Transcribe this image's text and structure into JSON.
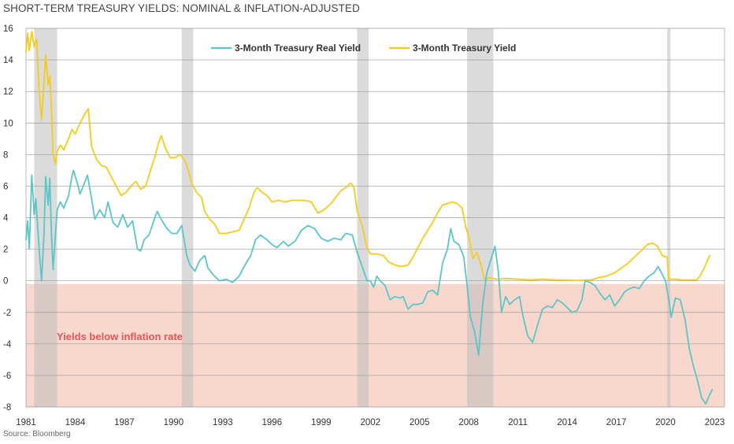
{
  "chart_data": {
    "type": "line",
    "title": "SHORT-TERM TREASURY YIELDS: NOMINAL & INFLATION-ADJUSTED",
    "source": "Source: Bloomberg",
    "xlabel": "",
    "ylabel": "",
    "xlim": [
      1981,
      2023.6
    ],
    "ylim": [
      -8,
      16
    ],
    "x_ticks": [
      1981,
      1984,
      1987,
      1990,
      1993,
      1996,
      1999,
      2002,
      2005,
      2008,
      2011,
      2014,
      2017,
      2020,
      2023
    ],
    "y_ticks": [
      -8,
      -6,
      -4,
      -2,
      0,
      2,
      4,
      6,
      8,
      10,
      12,
      14,
      16
    ],
    "grid": "horizontal",
    "legend_position": "top",
    "annotation": "Yields below inflation rate",
    "negative_region_color": "#f8d8cc",
    "annotation_color": "#e8545a",
    "recessions": [
      [
        1981.5,
        1982.9
      ],
      [
        1990.5,
        1991.2
      ],
      [
        2001.2,
        2001.9
      ],
      [
        2007.9,
        2009.5
      ],
      [
        2020.1,
        2020.3
      ]
    ],
    "series": [
      {
        "name": "3-Month Treasury Real Yield",
        "color": "#5bc5c8",
        "points": [
          [
            1981.0,
            2.6
          ],
          [
            1981.1,
            3.8
          ],
          [
            1981.2,
            2.0
          ],
          [
            1981.35,
            6.7
          ],
          [
            1981.5,
            4.2
          ],
          [
            1981.6,
            5.2
          ],
          [
            1981.8,
            2.0
          ],
          [
            1981.95,
            0.0
          ],
          [
            1982.1,
            3.0
          ],
          [
            1982.2,
            6.6
          ],
          [
            1982.35,
            4.8
          ],
          [
            1982.45,
            6.5
          ],
          [
            1982.55,
            3.0
          ],
          [
            1982.65,
            0.7
          ],
          [
            1982.8,
            3.0
          ],
          [
            1982.9,
            4.5
          ],
          [
            1983.1,
            5.0
          ],
          [
            1983.3,
            4.6
          ],
          [
            1983.6,
            5.4
          ],
          [
            1983.8,
            6.6
          ],
          [
            1983.9,
            7.0
          ],
          [
            1984.1,
            6.3
          ],
          [
            1984.3,
            5.5
          ],
          [
            1984.6,
            6.3
          ],
          [
            1984.75,
            6.7
          ],
          [
            1985.0,
            5.2
          ],
          [
            1985.2,
            3.9
          ],
          [
            1985.5,
            4.5
          ],
          [
            1985.8,
            4.0
          ],
          [
            1986.0,
            5.0
          ],
          [
            1986.3,
            3.7
          ],
          [
            1986.6,
            3.4
          ],
          [
            1986.9,
            4.2
          ],
          [
            1987.2,
            3.4
          ],
          [
            1987.5,
            3.8
          ],
          [
            1987.8,
            2.0
          ],
          [
            1988.0,
            1.9
          ],
          [
            1988.2,
            2.6
          ],
          [
            1988.5,
            2.9
          ],
          [
            1988.8,
            3.8
          ],
          [
            1989.0,
            4.4
          ],
          [
            1989.3,
            3.8
          ],
          [
            1989.6,
            3.3
          ],
          [
            1989.9,
            3.0
          ],
          [
            1990.2,
            3.0
          ],
          [
            1990.5,
            3.5
          ],
          [
            1990.8,
            1.6
          ],
          [
            1991.0,
            1.0
          ],
          [
            1991.3,
            0.6
          ],
          [
            1991.6,
            1.3
          ],
          [
            1991.9,
            1.6
          ],
          [
            1992.1,
            0.8
          ],
          [
            1992.4,
            0.4
          ],
          [
            1992.8,
            0.0
          ],
          [
            1993.2,
            0.1
          ],
          [
            1993.6,
            -0.1
          ],
          [
            1994.0,
            0.3
          ],
          [
            1994.3,
            0.9
          ],
          [
            1994.7,
            1.6
          ],
          [
            1995.0,
            2.6
          ],
          [
            1995.3,
            2.9
          ],
          [
            1995.7,
            2.6
          ],
          [
            1996.0,
            2.3
          ],
          [
            1996.3,
            2.1
          ],
          [
            1996.7,
            2.5
          ],
          [
            1997.0,
            2.2
          ],
          [
            1997.4,
            2.5
          ],
          [
            1997.8,
            3.2
          ],
          [
            1998.2,
            3.5
          ],
          [
            1998.6,
            3.3
          ],
          [
            1999.0,
            2.7
          ],
          [
            1999.4,
            2.5
          ],
          [
            1999.8,
            2.7
          ],
          [
            2000.2,
            2.6
          ],
          [
            2000.5,
            3.0
          ],
          [
            2000.9,
            2.9
          ],
          [
            2001.2,
            1.8
          ],
          [
            2001.5,
            0.9
          ],
          [
            2001.8,
            0.0
          ],
          [
            2002.0,
            0.0
          ],
          [
            2002.2,
            -0.4
          ],
          [
            2002.4,
            0.3
          ],
          [
            2002.6,
            0.0
          ],
          [
            2002.9,
            -0.3
          ],
          [
            2003.2,
            -1.2
          ],
          [
            2003.5,
            -1.0
          ],
          [
            2003.8,
            -1.1
          ],
          [
            2004.0,
            -1.0
          ],
          [
            2004.3,
            -1.8
          ],
          [
            2004.6,
            -1.5
          ],
          [
            2004.9,
            -1.5
          ],
          [
            2005.2,
            -1.4
          ],
          [
            2005.5,
            -0.7
          ],
          [
            2005.8,
            -0.6
          ],
          [
            2006.1,
            -0.9
          ],
          [
            2006.4,
            1.1
          ],
          [
            2006.7,
            2.0
          ],
          [
            2006.9,
            3.3
          ],
          [
            2007.1,
            2.5
          ],
          [
            2007.4,
            2.3
          ],
          [
            2007.7,
            1.5
          ],
          [
            2007.9,
            -0.3
          ],
          [
            2008.1,
            -2.3
          ],
          [
            2008.35,
            -3.2
          ],
          [
            2008.6,
            -4.7
          ],
          [
            2008.85,
            -1.5
          ],
          [
            2009.1,
            0.5
          ],
          [
            2009.4,
            1.5
          ],
          [
            2009.6,
            2.2
          ],
          [
            2009.8,
            0.6
          ],
          [
            2010.0,
            -2.0
          ],
          [
            2010.25,
            -1.0
          ],
          [
            2010.5,
            -1.5
          ],
          [
            2010.8,
            -1.2
          ],
          [
            2011.1,
            -1.0
          ],
          [
            2011.3,
            -2.2
          ],
          [
            2011.6,
            -3.5
          ],
          [
            2011.9,
            -3.9
          ],
          [
            2012.2,
            -2.8
          ],
          [
            2012.5,
            -1.8
          ],
          [
            2012.8,
            -1.6
          ],
          [
            2013.1,
            -1.7
          ],
          [
            2013.4,
            -1.2
          ],
          [
            2013.7,
            -1.4
          ],
          [
            2014.0,
            -1.7
          ],
          [
            2014.3,
            -2.0
          ],
          [
            2014.6,
            -1.9
          ],
          [
            2014.9,
            -1.2
          ],
          [
            2015.1,
            0.0
          ],
          [
            2015.4,
            -0.1
          ],
          [
            2015.7,
            -0.3
          ],
          [
            2016.0,
            -0.8
          ],
          [
            2016.3,
            -1.2
          ],
          [
            2016.6,
            -0.9
          ],
          [
            2016.9,
            -1.6
          ],
          [
            2017.2,
            -1.2
          ],
          [
            2017.5,
            -0.7
          ],
          [
            2017.8,
            -0.5
          ],
          [
            2018.1,
            -0.4
          ],
          [
            2018.4,
            -0.5
          ],
          [
            2018.7,
            0.0
          ],
          [
            2019.0,
            0.3
          ],
          [
            2019.3,
            0.5
          ],
          [
            2019.55,
            0.9
          ],
          [
            2019.8,
            0.4
          ],
          [
            2020.0,
            0.0
          ],
          [
            2020.2,
            -1.2
          ],
          [
            2020.35,
            -2.3
          ],
          [
            2020.6,
            -1.1
          ],
          [
            2020.9,
            -1.2
          ],
          [
            2021.2,
            -2.5
          ],
          [
            2021.45,
            -4.3
          ],
          [
            2021.7,
            -5.4
          ],
          [
            2021.95,
            -6.3
          ],
          [
            2022.2,
            -7.4
          ],
          [
            2022.45,
            -7.8
          ],
          [
            2022.7,
            -7.2
          ],
          [
            2022.85,
            -6.9
          ]
        ]
      },
      {
        "name": "3-Month Treasury Yield",
        "color": "#f6cb1b",
        "points": [
          [
            1981.0,
            14.5
          ],
          [
            1981.1,
            15.7
          ],
          [
            1981.2,
            14.6
          ],
          [
            1981.35,
            15.8
          ],
          [
            1981.5,
            14.8
          ],
          [
            1981.65,
            15.3
          ],
          [
            1981.8,
            12.0
          ],
          [
            1981.95,
            10.2
          ],
          [
            1982.1,
            12.6
          ],
          [
            1982.2,
            14.3
          ],
          [
            1982.35,
            12.4
          ],
          [
            1982.45,
            13.0
          ],
          [
            1982.55,
            11.0
          ],
          [
            1982.65,
            8.0
          ],
          [
            1982.8,
            7.4
          ],
          [
            1982.9,
            8.2
          ],
          [
            1983.1,
            8.6
          ],
          [
            1983.3,
            8.3
          ],
          [
            1983.6,
            9.0
          ],
          [
            1983.8,
            9.6
          ],
          [
            1984.0,
            9.3
          ],
          [
            1984.3,
            10.0
          ],
          [
            1984.6,
            10.6
          ],
          [
            1984.8,
            10.9
          ],
          [
            1985.0,
            8.5
          ],
          [
            1985.3,
            7.7
          ],
          [
            1985.6,
            7.3
          ],
          [
            1985.9,
            7.2
          ],
          [
            1986.2,
            6.6
          ],
          [
            1986.5,
            6.0
          ],
          [
            1986.8,
            5.4
          ],
          [
            1987.1,
            5.6
          ],
          [
            1987.4,
            6.0
          ],
          [
            1987.7,
            6.3
          ],
          [
            1988.0,
            5.8
          ],
          [
            1988.3,
            6.0
          ],
          [
            1988.6,
            7.0
          ],
          [
            1988.9,
            8.0
          ],
          [
            1989.1,
            8.8
          ],
          [
            1989.25,
            9.2
          ],
          [
            1989.5,
            8.4
          ],
          [
            1989.8,
            7.8
          ],
          [
            1990.1,
            7.8
          ],
          [
            1990.4,
            8.0
          ],
          [
            1990.7,
            7.6
          ],
          [
            1990.9,
            7.0
          ],
          [
            1991.1,
            6.2
          ],
          [
            1991.4,
            5.6
          ],
          [
            1991.7,
            5.3
          ],
          [
            1991.9,
            4.4
          ],
          [
            1992.2,
            3.9
          ],
          [
            1992.5,
            3.6
          ],
          [
            1992.8,
            3.0
          ],
          [
            1993.2,
            3.0
          ],
          [
            1993.6,
            3.1
          ],
          [
            1994.0,
            3.2
          ],
          [
            1994.3,
            3.9
          ],
          [
            1994.6,
            4.6
          ],
          [
            1994.9,
            5.6
          ],
          [
            1995.1,
            5.9
          ],
          [
            1995.4,
            5.6
          ],
          [
            1995.7,
            5.4
          ],
          [
            1996.0,
            5.0
          ],
          [
            1996.4,
            5.1
          ],
          [
            1996.8,
            5.0
          ],
          [
            1997.2,
            5.1
          ],
          [
            1997.6,
            5.1
          ],
          [
            1998.0,
            5.1
          ],
          [
            1998.4,
            5.0
          ],
          [
            1998.8,
            4.3
          ],
          [
            1999.0,
            4.4
          ],
          [
            1999.3,
            4.6
          ],
          [
            1999.6,
            4.9
          ],
          [
            1999.9,
            5.3
          ],
          [
            2000.2,
            5.7
          ],
          [
            2000.5,
            5.9
          ],
          [
            2000.8,
            6.2
          ],
          [
            2001.0,
            5.9
          ],
          [
            2001.2,
            4.4
          ],
          [
            2001.5,
            3.5
          ],
          [
            2001.8,
            2.1
          ],
          [
            2002.0,
            1.7
          ],
          [
            2002.4,
            1.7
          ],
          [
            2002.8,
            1.6
          ],
          [
            2003.1,
            1.2
          ],
          [
            2003.5,
            1.0
          ],
          [
            2003.9,
            0.9
          ],
          [
            2004.3,
            1.0
          ],
          [
            2004.6,
            1.5
          ],
          [
            2004.9,
            2.1
          ],
          [
            2005.2,
            2.7
          ],
          [
            2005.5,
            3.2
          ],
          [
            2005.8,
            3.7
          ],
          [
            2006.1,
            4.3
          ],
          [
            2006.4,
            4.8
          ],
          [
            2006.7,
            4.9
          ],
          [
            2007.0,
            5.0
          ],
          [
            2007.3,
            4.9
          ],
          [
            2007.6,
            4.6
          ],
          [
            2007.8,
            3.5
          ],
          [
            2008.0,
            2.8
          ],
          [
            2008.25,
            1.4
          ],
          [
            2008.5,
            1.8
          ],
          [
            2008.75,
            1.0
          ],
          [
            2008.95,
            0.1
          ],
          [
            2009.3,
            0.2
          ],
          [
            2009.7,
            0.1
          ],
          [
            2010.3,
            0.15
          ],
          [
            2011.0,
            0.1
          ],
          [
            2011.8,
            0.05
          ],
          [
            2012.5,
            0.1
          ],
          [
            2013.3,
            0.05
          ],
          [
            2014.0,
            0.04
          ],
          [
            2014.8,
            0.03
          ],
          [
            2015.5,
            0.05
          ],
          [
            2015.9,
            0.2
          ],
          [
            2016.4,
            0.3
          ],
          [
            2016.9,
            0.5
          ],
          [
            2017.3,
            0.8
          ],
          [
            2017.7,
            1.1
          ],
          [
            2018.1,
            1.5
          ],
          [
            2018.5,
            1.9
          ],
          [
            2018.9,
            2.3
          ],
          [
            2019.2,
            2.4
          ],
          [
            2019.5,
            2.2
          ],
          [
            2019.8,
            1.6
          ],
          [
            2020.1,
            1.5
          ],
          [
            2020.2,
            0.1
          ],
          [
            2020.6,
            0.1
          ],
          [
            2021.0,
            0.05
          ],
          [
            2021.5,
            0.05
          ],
          [
            2021.9,
            0.05
          ],
          [
            2022.1,
            0.3
          ],
          [
            2022.4,
            0.9
          ],
          [
            2022.6,
            1.4
          ],
          [
            2022.7,
            1.6
          ]
        ]
      }
    ]
  }
}
